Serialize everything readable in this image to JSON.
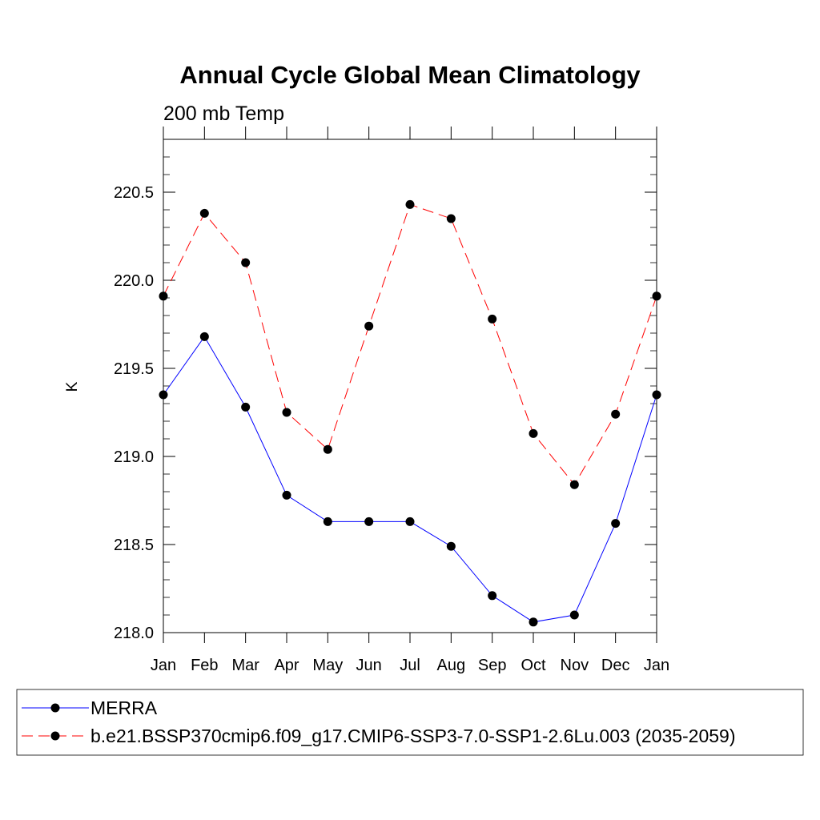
{
  "chart_data": {
    "type": "line",
    "title": "Annual Cycle Global Mean Climatology",
    "subtitle": "200 mb Temp",
    "xlabel": "",
    "ylabel": "K",
    "categories": [
      "Jan",
      "Feb",
      "Mar",
      "Apr",
      "May",
      "Jun",
      "Jul",
      "Aug",
      "Sep",
      "Oct",
      "Nov",
      "Dec",
      "Jan"
    ],
    "ylim": [
      218.0,
      220.8
    ],
    "yticks": [
      "218.0",
      "218.5",
      "219.0",
      "219.5",
      "220.0",
      "220.5"
    ],
    "series": [
      {
        "name": "MERRA",
        "color": "#0000ff",
        "dash": "solid",
        "values": [
          219.35,
          219.68,
          219.28,
          218.78,
          218.63,
          218.63,
          218.63,
          218.49,
          218.21,
          218.06,
          218.1,
          218.62,
          219.35
        ]
      },
      {
        "name": "b.e21.BSSP370cmip6.f09_g17.CMIP6-SSP3-7.0-SSP1-2.6Lu.003 (2035-2059)",
        "color": "#ff0000",
        "dash": "dashed",
        "values": [
          219.91,
          220.38,
          220.1,
          219.25,
          219.04,
          219.74,
          220.43,
          220.35,
          219.78,
          219.13,
          218.84,
          219.24,
          219.91
        ]
      }
    ],
    "legend_position": "bottom",
    "grid": false
  }
}
